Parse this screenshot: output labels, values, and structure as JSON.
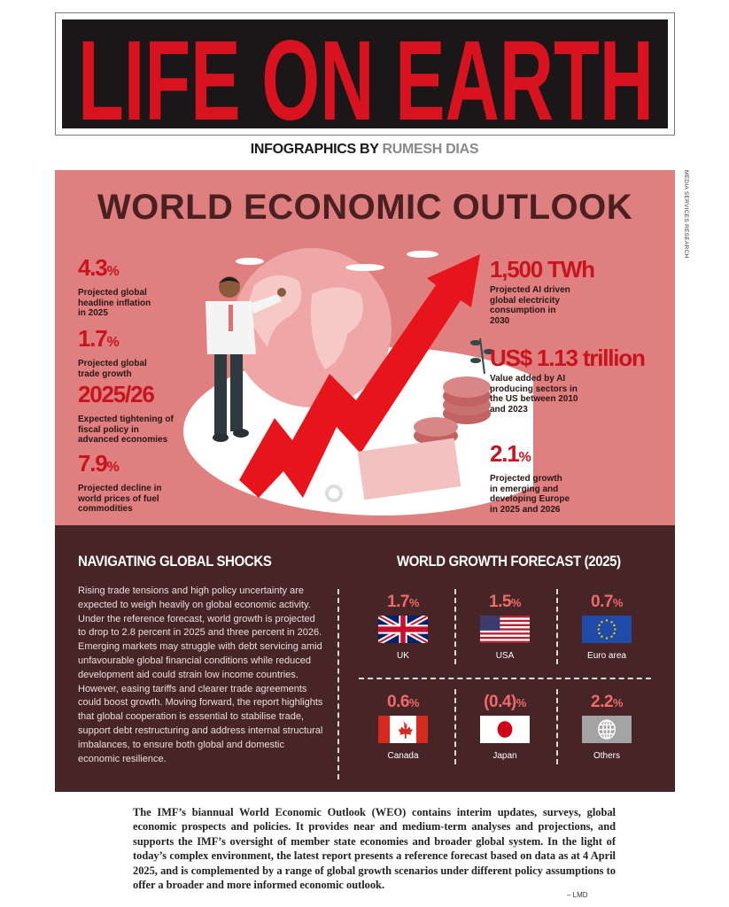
{
  "masthead": {
    "title": "LIFE ON EARTH",
    "title_color": "#d8131f"
  },
  "byline": {
    "prefix": "INFOGRAPHICS BY",
    "author": "RUMESH DIAS"
  },
  "side_credit": "MEDIA SERVICES RESEARCH",
  "outlook": {
    "title": "WORLD ECONOMIC OUTLOOK",
    "left_stats": [
      {
        "value": "4.3",
        "unit": "%",
        "desc": "Projected global headline inflation in 2025"
      },
      {
        "value": "1.7",
        "unit": "%",
        "desc": "Projected global trade growth"
      },
      {
        "value": "2025/26",
        "unit": "",
        "desc": "Expected tightening of fiscal policy in advanced economies"
      },
      {
        "value": "7.9",
        "unit": "%",
        "desc": "Projected decline in world prices of fuel commodities"
      }
    ],
    "right_stats": [
      {
        "value": "1,500 TWh",
        "unit": "",
        "desc": "Projected AI driven global electricity consumption in 2030"
      },
      {
        "value": "US$ 1.13 trillion",
        "unit": "",
        "desc": "Value added by AI producing sectors in the US between 2010 and 2023"
      },
      {
        "value": "2.1",
        "unit": "%",
        "desc": "Projected growth in emerging and developing Europe in 2025 and 2026"
      }
    ],
    "illustration_icons": [
      "businessman",
      "globe",
      "rising-arrow",
      "dollar-coins",
      "plant",
      "chart-sheet",
      "gear"
    ]
  },
  "shocks": {
    "title": "NAVIGATING GLOBAL SHOCKS",
    "body": "Rising trade tensions and high policy uncertainty are expected to weigh heavily on global economic activity. Under the reference forecast, world growth is projected to drop to 2.8 percent in 2025 and three percent in 2026. Emerging markets may struggle with debt servicing amid unfavourable global financial conditions while reduced development aid could strain low income countries. However, easing tariffs and clearer trade agreements could boost growth. Moving forward, the report highlights that global cooperation is essential to stabilise trade, support debt restructuring and address internal structural imbalances, to ensure both global and domestic economic resilience."
  },
  "forecast": {
    "title": "WORLD GROWTH FORECAST (2025)",
    "items": [
      {
        "value": "1.7",
        "unit": "%",
        "label": "UK",
        "flag": "uk-flag"
      },
      {
        "value": "1.5",
        "unit": "%",
        "label": "USA",
        "flag": "usa-flag"
      },
      {
        "value": "0.7",
        "unit": "%",
        "label": "Euro area",
        "flag": "eu-flag"
      },
      {
        "value": "0.6",
        "unit": "%",
        "label": "Canada",
        "flag": "canada-flag"
      },
      {
        "value": "(0.4)",
        "unit": "%",
        "label": "Japan",
        "flag": "japan-flag"
      },
      {
        "value": "2.2",
        "unit": "%",
        "label": "Others",
        "flag": "globe-icon"
      }
    ]
  },
  "footer": {
    "text": "The IMF’s biannual World Economic Outlook (WEO) contains interim updates, surveys, global economic prospects and policies. It provides near and medium-term analyses and projections, and supports the IMF’s oversight of member state economies and broader global system. In the light of today’s complex environment, the latest report presents a reference forecast based on data as at 4 April 2025, and is complemented by a range of global growth scenarios under different policy assumptions to offer a broader and more informed economic outlook.",
    "credit": "– LMD"
  },
  "colors": {
    "pink_bg": "#e07f80",
    "dark_bg": "#472526",
    "stat_red": "#c8141e",
    "forecast_red": "#ef6a6a"
  }
}
